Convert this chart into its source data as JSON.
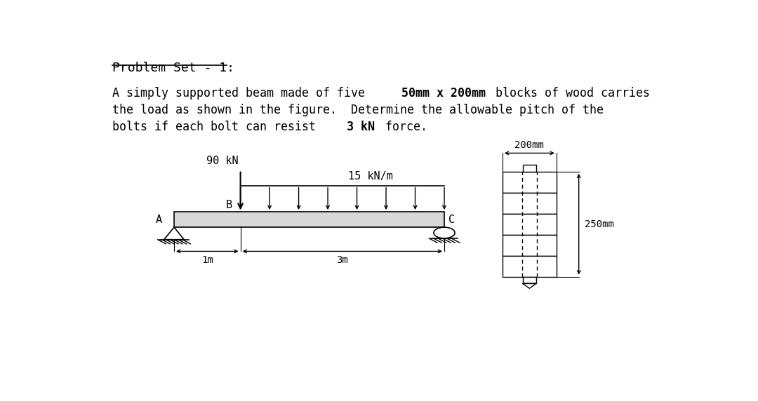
{
  "bg_color": "#ffffff",
  "title_text": "Problem Set - 1:",
  "point_load_label": "90 kN",
  "dist_load_label": "15 kN/m",
  "label_A": "A",
  "label_B": "B",
  "label_C": "C",
  "dim_1m": "1m",
  "dim_3m": "3m",
  "dim_200mm": "200mm",
  "dim_250mm": "250mm"
}
